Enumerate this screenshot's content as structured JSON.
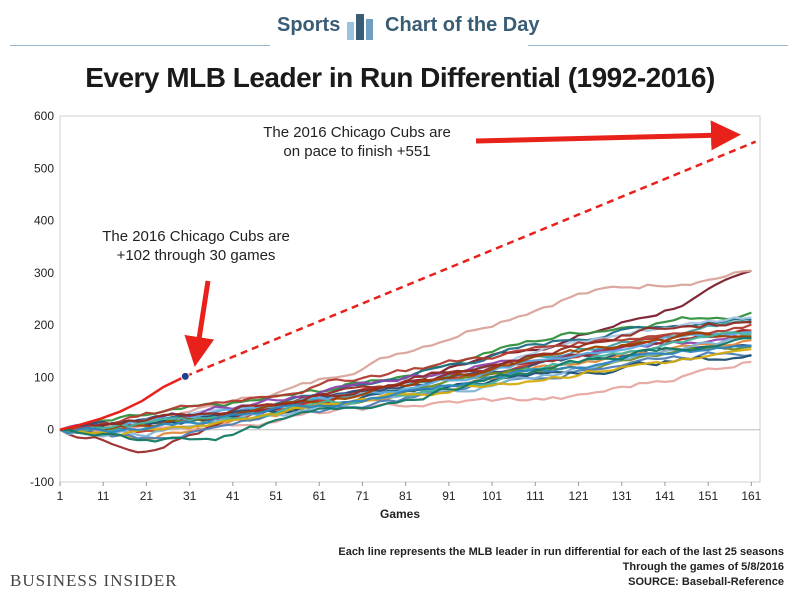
{
  "header": {
    "left_label": "Sports",
    "right_label": "Chart of the Day",
    "logo_icon": "bar-chart-icon"
  },
  "footer": {
    "publisher": "Business Insider",
    "notes": [
      "Each line represents the MLB leader in run differential for each of the last 25 seasons",
      "Through the games of 5/8/2016",
      "SOURCE: Baseball-Reference"
    ]
  },
  "chart_data": {
    "type": "line",
    "title": "Every MLB Leader in Run Differential (1992-2016)",
    "xlabel": "Games",
    "ylabel": "",
    "xlim": [
      1,
      163
    ],
    "ylim": [
      -100,
      600
    ],
    "xticks": [
      1,
      11,
      21,
      31,
      41,
      51,
      61,
      71,
      81,
      91,
      101,
      111,
      121,
      131,
      141,
      151,
      161
    ],
    "yticks": [
      -100,
      0,
      100,
      200,
      300,
      400,
      500,
      600
    ],
    "grid": false,
    "legend": "none",
    "highlight": {
      "color": "#e8221b",
      "actual": [
        [
          1,
          0
        ],
        [
          5,
          8
        ],
        [
          10,
          20
        ],
        [
          15,
          35
        ],
        [
          20,
          55
        ],
        [
          25,
          82
        ],
        [
          30,
          102
        ]
      ],
      "projection": [
        [
          30,
          102
        ],
        [
          162,
          551
        ]
      ],
      "marker": [
        30,
        102
      ]
    },
    "series": [
      {
        "color": "#7b1e2e",
        "values": [
          [
            1,
            0
          ],
          [
            20,
            10
          ],
          [
            40,
            35
          ],
          [
            60,
            55
          ],
          [
            80,
            90
          ],
          [
            100,
            140
          ],
          [
            120,
            175
          ],
          [
            140,
            225
          ],
          [
            162,
            300
          ]
        ]
      },
      {
        "color": "#d9a39a",
        "values": [
          [
            1,
            0
          ],
          [
            20,
            15
          ],
          [
            40,
            50
          ],
          [
            60,
            90
          ],
          [
            80,
            150
          ],
          [
            100,
            205
          ],
          [
            120,
            260
          ],
          [
            140,
            280
          ],
          [
            162,
            305
          ]
        ]
      },
      {
        "color": "#2f8f3a",
        "values": [
          [
            1,
            0
          ],
          [
            20,
            22
          ],
          [
            40,
            45
          ],
          [
            60,
            70
          ],
          [
            80,
            105
          ],
          [
            100,
            150
          ],
          [
            120,
            185
          ],
          [
            140,
            210
          ],
          [
            162,
            225
          ]
        ]
      },
      {
        "color": "#1f6f86",
        "values": [
          [
            1,
            0
          ],
          [
            20,
            8
          ],
          [
            40,
            30
          ],
          [
            60,
            65
          ],
          [
            80,
            100
          ],
          [
            100,
            140
          ],
          [
            120,
            175
          ],
          [
            140,
            200
          ],
          [
            162,
            215
          ]
        ]
      },
      {
        "color": "#a8c8e8",
        "values": [
          [
            1,
            0
          ],
          [
            20,
            12
          ],
          [
            40,
            35
          ],
          [
            60,
            60
          ],
          [
            80,
            95
          ],
          [
            100,
            130
          ],
          [
            120,
            165
          ],
          [
            140,
            195
          ],
          [
            162,
            220
          ]
        ]
      },
      {
        "color": "#3da0a0",
        "values": [
          [
            1,
            0
          ],
          [
            20,
            5
          ],
          [
            40,
            25
          ],
          [
            60,
            55
          ],
          [
            80,
            85
          ],
          [
            100,
            120
          ],
          [
            120,
            155
          ],
          [
            140,
            185
          ],
          [
            162,
            205
          ]
        ]
      },
      {
        "color": "#c0392b",
        "values": [
          [
            1,
            0
          ],
          [
            20,
            -5
          ],
          [
            40,
            20
          ],
          [
            60,
            50
          ],
          [
            80,
            85
          ],
          [
            100,
            115
          ],
          [
            120,
            150
          ],
          [
            140,
            175
          ],
          [
            162,
            195
          ]
        ]
      },
      {
        "color": "#8e44ad",
        "values": [
          [
            1,
            0
          ],
          [
            20,
            10
          ],
          [
            40,
            40
          ],
          [
            60,
            70
          ],
          [
            80,
            100
          ],
          [
            100,
            125
          ],
          [
            120,
            150
          ],
          [
            140,
            165
          ],
          [
            162,
            180
          ]
        ]
      },
      {
        "color": "#2c4f7c",
        "values": [
          [
            1,
            0
          ],
          [
            20,
            15
          ],
          [
            40,
            30
          ],
          [
            60,
            60
          ],
          [
            80,
            80
          ],
          [
            100,
            110
          ],
          [
            120,
            135
          ],
          [
            140,
            155
          ],
          [
            162,
            165
          ]
        ]
      },
      {
        "color": "#e08a3c",
        "values": [
          [
            1,
            0
          ],
          [
            20,
            -10
          ],
          [
            40,
            10
          ],
          [
            60,
            40
          ],
          [
            80,
            70
          ],
          [
            100,
            100
          ],
          [
            120,
            130
          ],
          [
            140,
            150
          ],
          [
            162,
            170
          ]
        ]
      },
      {
        "color": "#6b8e23",
        "values": [
          [
            1,
            0
          ],
          [
            20,
            5
          ],
          [
            40,
            15
          ],
          [
            60,
            45
          ],
          [
            80,
            75
          ],
          [
            100,
            100
          ],
          [
            120,
            120
          ],
          [
            140,
            140
          ],
          [
            162,
            160
          ]
        ]
      },
      {
        "color": "#e7a7a0",
        "values": [
          [
            1,
            0
          ],
          [
            20,
            2
          ],
          [
            40,
            10
          ],
          [
            60,
            30
          ],
          [
            80,
            45
          ],
          [
            100,
            55
          ],
          [
            120,
            60
          ],
          [
            140,
            95
          ],
          [
            162,
            135
          ]
        ]
      },
      {
        "color": "#9b2c2c",
        "values": [
          [
            1,
            0
          ],
          [
            20,
            -35
          ],
          [
            40,
            15
          ],
          [
            60,
            60
          ],
          [
            80,
            95
          ],
          [
            100,
            120
          ],
          [
            120,
            140
          ],
          [
            140,
            165
          ],
          [
            162,
            185
          ]
        ]
      },
      {
        "color": "#4d7fb8",
        "values": [
          [
            1,
            0
          ],
          [
            20,
            -15
          ],
          [
            40,
            5
          ],
          [
            60,
            35
          ],
          [
            80,
            60
          ],
          [
            100,
            90
          ],
          [
            120,
            115
          ],
          [
            140,
            140
          ],
          [
            162,
            150
          ]
        ]
      },
      {
        "color": "#1b4f72",
        "values": [
          [
            1,
            0
          ],
          [
            20,
            8
          ],
          [
            40,
            25
          ],
          [
            60,
            50
          ],
          [
            80,
            75
          ],
          [
            100,
            95
          ],
          [
            120,
            110
          ],
          [
            140,
            130
          ],
          [
            162,
            140
          ]
        ]
      },
      {
        "color": "#5dade2",
        "values": [
          [
            1,
            0
          ],
          [
            20,
            18
          ],
          [
            40,
            40
          ],
          [
            60,
            55
          ],
          [
            80,
            80
          ],
          [
            100,
            110
          ],
          [
            120,
            145
          ],
          [
            140,
            170
          ],
          [
            162,
            190
          ]
        ]
      },
      {
        "color": "#b03a2e",
        "values": [
          [
            1,
            0
          ],
          [
            20,
            25
          ],
          [
            40,
            55
          ],
          [
            60,
            85
          ],
          [
            80,
            115
          ],
          [
            100,
            140
          ],
          [
            120,
            165
          ],
          [
            140,
            185
          ],
          [
            162,
            200
          ]
        ]
      },
      {
        "color": "#7fb3d5",
        "values": [
          [
            1,
            0
          ],
          [
            20,
            -5
          ],
          [
            40,
            15
          ],
          [
            60,
            40
          ],
          [
            80,
            60
          ],
          [
            100,
            85
          ],
          [
            120,
            115
          ],
          [
            140,
            150
          ],
          [
            162,
            175
          ]
        ]
      },
      {
        "color": "#a04000",
        "values": [
          [
            1,
            0
          ],
          [
            20,
            12
          ],
          [
            40,
            30
          ],
          [
            60,
            55
          ],
          [
            80,
            85
          ],
          [
            100,
            115
          ],
          [
            120,
            145
          ],
          [
            140,
            170
          ],
          [
            162,
            185
          ]
        ]
      },
      {
        "color": "#45b39d",
        "values": [
          [
            1,
            0
          ],
          [
            20,
            10
          ],
          [
            40,
            20
          ],
          [
            60,
            45
          ],
          [
            80,
            70
          ],
          [
            100,
            95
          ],
          [
            120,
            130
          ],
          [
            140,
            160
          ],
          [
            162,
            180
          ]
        ]
      },
      {
        "color": "#d4ac0d",
        "values": [
          [
            1,
            0
          ],
          [
            20,
            0
          ],
          [
            40,
            20
          ],
          [
            60,
            45
          ],
          [
            80,
            65
          ],
          [
            100,
            90
          ],
          [
            120,
            110
          ],
          [
            140,
            130
          ],
          [
            162,
            145
          ]
        ]
      },
      {
        "color": "#922b21",
        "values": [
          [
            1,
            0
          ],
          [
            20,
            20
          ],
          [
            40,
            40
          ],
          [
            60,
            65
          ],
          [
            80,
            95
          ],
          [
            100,
            125
          ],
          [
            120,
            160
          ],
          [
            140,
            195
          ],
          [
            162,
            210
          ]
        ]
      },
      {
        "color": "#2e86c1",
        "values": [
          [
            1,
            0
          ],
          [
            20,
            5
          ],
          [
            40,
            25
          ],
          [
            60,
            45
          ],
          [
            80,
            70
          ],
          [
            100,
            100
          ],
          [
            120,
            120
          ],
          [
            140,
            140
          ],
          [
            162,
            160
          ]
        ]
      },
      {
        "color": "#117a65",
        "values": [
          [
            1,
            0
          ],
          [
            20,
            -20
          ],
          [
            40,
            -10
          ],
          [
            60,
            30
          ],
          [
            80,
            60
          ],
          [
            100,
            95
          ],
          [
            120,
            125
          ],
          [
            140,
            155
          ],
          [
            162,
            170
          ]
        ]
      }
    ],
    "annotations": [
      {
        "lines": [
          "The 2016 Chicago Cubs are",
          "on pace to finish +551"
        ]
      },
      {
        "lines": [
          "The 2016 Chicago Cubs are",
          "+102 through 30 games"
        ]
      }
    ]
  }
}
